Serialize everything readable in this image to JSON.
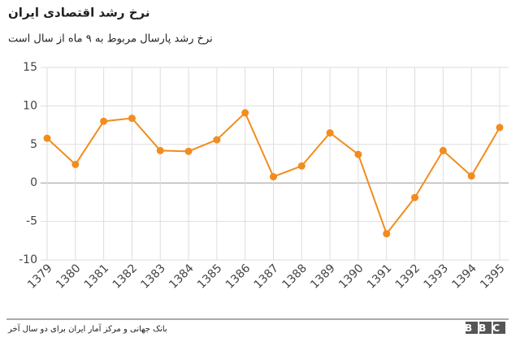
{
  "chart_data": {
    "type": "line",
    "title": "نرخ رشد اقتصادی ایران",
    "subtitle": "نرخ رشد پارسال مربوط به ۹ ماه از سال است",
    "categories": [
      "1379",
      "1380",
      "1381",
      "1382",
      "1383",
      "1384",
      "1385",
      "1386",
      "1387",
      "1388",
      "1389",
      "1390",
      "1391",
      "1392",
      "1393",
      "1394",
      "1395"
    ],
    "values": [
      5.8,
      2.4,
      8.0,
      8.4,
      4.2,
      4.1,
      5.6,
      9.1,
      0.8,
      2.2,
      6.5,
      3.7,
      -6.6,
      -1.9,
      4.2,
      0.9,
      7.2
    ],
    "color": "#f28c1e",
    "ylim": [
      -10,
      15
    ],
    "yticks": [
      -10,
      -5,
      0,
      5,
      10,
      15
    ],
    "grid": true,
    "source": "بانک جهانی و مرکز آمار ایران برای دو سال آخر",
    "logo": "BBC"
  }
}
